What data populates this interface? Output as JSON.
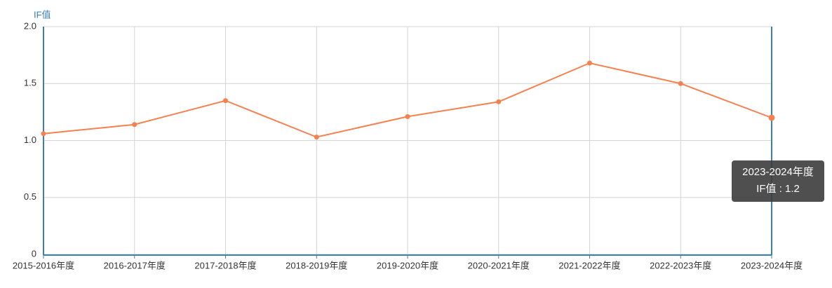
{
  "chart_data": {
    "type": "line",
    "y_label": "IF值",
    "categories": [
      "2015-2016年度",
      "2016-2017年度",
      "2017-2018年度",
      "2018-2019年度",
      "2019-2020年度",
      "2020-2021年度",
      "2021-2022年度",
      "2022-2023年度",
      "2023-2024年度"
    ],
    "series": [
      {
        "name": "IF值",
        "color": "#f5814f",
        "values": [
          1.06,
          1.14,
          1.35,
          1.03,
          1.21,
          1.34,
          1.68,
          1.5,
          1.2
        ]
      }
    ],
    "ylim": [
      0,
      2
    ],
    "yticks": [
      0,
      0.5,
      {
        "value": 1,
        "label": "1.0"
      },
      1.5,
      {
        "value": 2,
        "label": "2.0"
      }
    ],
    "grid": true,
    "tooltip": {
      "title": "2023-2024年度",
      "text": "IF值 : 1.2"
    }
  }
}
